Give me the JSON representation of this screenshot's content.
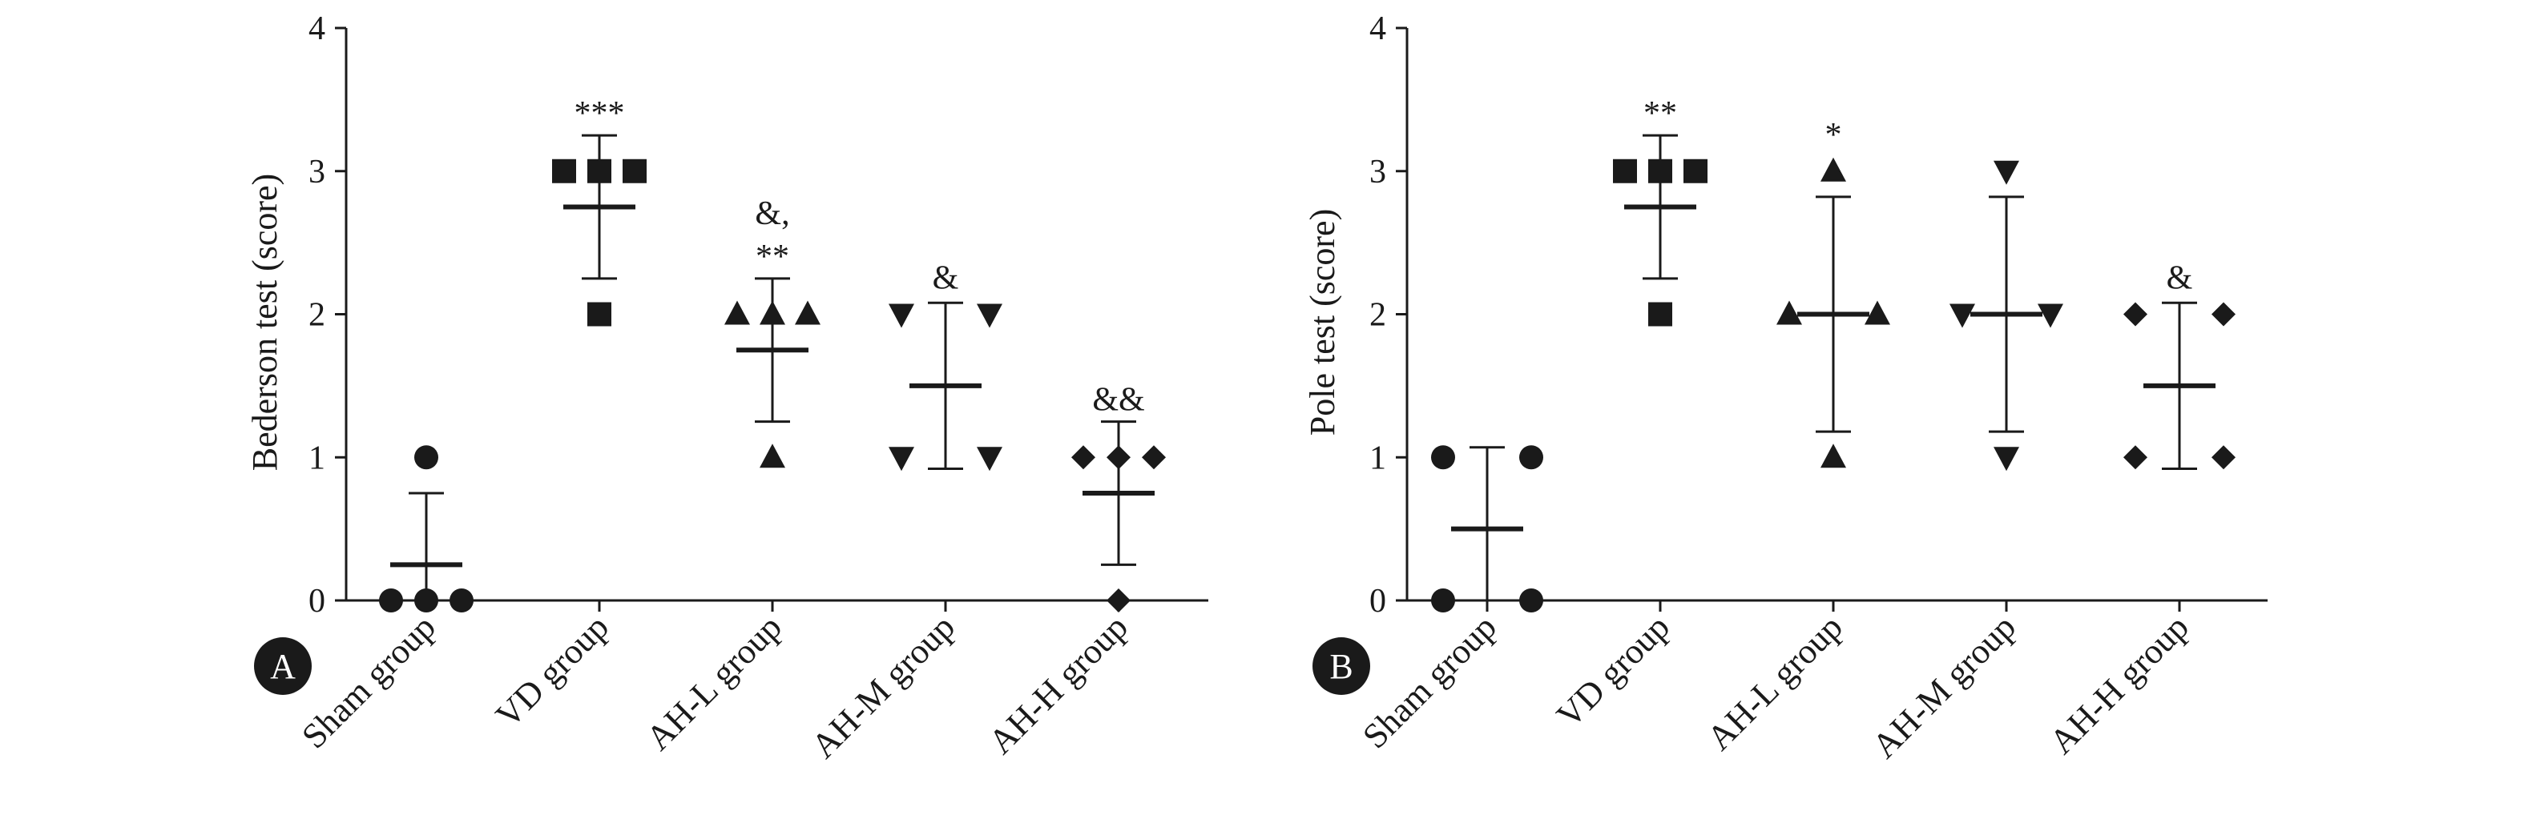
{
  "chart_data": [
    {
      "type": "scatter",
      "panel_label": "A",
      "ylabel": "Bederson test (score)",
      "ylim": [
        0,
        4
      ],
      "yticks": [
        "0",
        "1",
        "2",
        "3",
        "4"
      ],
      "categories": [
        "Sham group",
        "VD group",
        "AH-L group",
        "AH-M group",
        "AH-H group"
      ],
      "markers": [
        "circle",
        "square",
        "triangle-up",
        "triangle-down",
        "diamond"
      ],
      "color": "#1a1a1a",
      "groups": [
        {
          "category": "Sham group",
          "points": [
            0,
            0,
            0,
            1
          ],
          "mean": 0.25,
          "sd_low": 0,
          "sd_high": 0.75,
          "significance": []
        },
        {
          "category": "VD group",
          "points": [
            3,
            3,
            3,
            2
          ],
          "mean": 2.75,
          "sd_low": 2.25,
          "sd_high": 3.25,
          "significance": [
            "***"
          ]
        },
        {
          "category": "AH-L group",
          "points": [
            2,
            2,
            2,
            1
          ],
          "mean": 1.75,
          "sd_low": 1.25,
          "sd_high": 2.25,
          "significance": [
            "&,",
            "**"
          ]
        },
        {
          "category": "AH-M group",
          "points": [
            2,
            2,
            1,
            1
          ],
          "mean": 1.5,
          "sd_low": 0.92,
          "sd_high": 2.08,
          "significance": [
            "&"
          ]
        },
        {
          "category": "AH-H group",
          "points": [
            1,
            1,
            1,
            0
          ],
          "mean": 0.75,
          "sd_low": 0.25,
          "sd_high": 1.25,
          "significance": [
            "&&"
          ]
        }
      ]
    },
    {
      "type": "scatter",
      "panel_label": "B",
      "ylabel": "Pole test (score)",
      "ylim": [
        0,
        4
      ],
      "yticks": [
        "0",
        "1",
        "2",
        "3",
        "4"
      ],
      "categories": [
        "Sham group",
        "VD group",
        "AH-L group",
        "AH-M group",
        "AH-H group"
      ],
      "markers": [
        "circle",
        "square",
        "triangle-up",
        "triangle-down",
        "diamond"
      ],
      "color": "#1a1a1a",
      "groups": [
        {
          "category": "Sham group",
          "points": [
            0,
            0,
            1,
            1
          ],
          "mean": 0.5,
          "sd_low": 0,
          "sd_high": 1.07,
          "significance": []
        },
        {
          "category": "VD group",
          "points": [
            3,
            3,
            3,
            2
          ],
          "mean": 2.75,
          "sd_low": 2.25,
          "sd_high": 3.25,
          "significance": [
            "**"
          ]
        },
        {
          "category": "AH-L group",
          "points": [
            3,
            2,
            2,
            1
          ],
          "mean": 2.0,
          "sd_low": 1.18,
          "sd_high": 2.82,
          "significance": [
            "*"
          ]
        },
        {
          "category": "AH-M group",
          "points": [
            3,
            2,
            2,
            1
          ],
          "mean": 2.0,
          "sd_low": 1.18,
          "sd_high": 2.82,
          "significance": []
        },
        {
          "category": "AH-H group",
          "points": [
            2,
            2,
            1,
            1
          ],
          "mean": 1.5,
          "sd_low": 0.92,
          "sd_high": 2.08,
          "significance": [
            "&"
          ]
        }
      ]
    }
  ]
}
